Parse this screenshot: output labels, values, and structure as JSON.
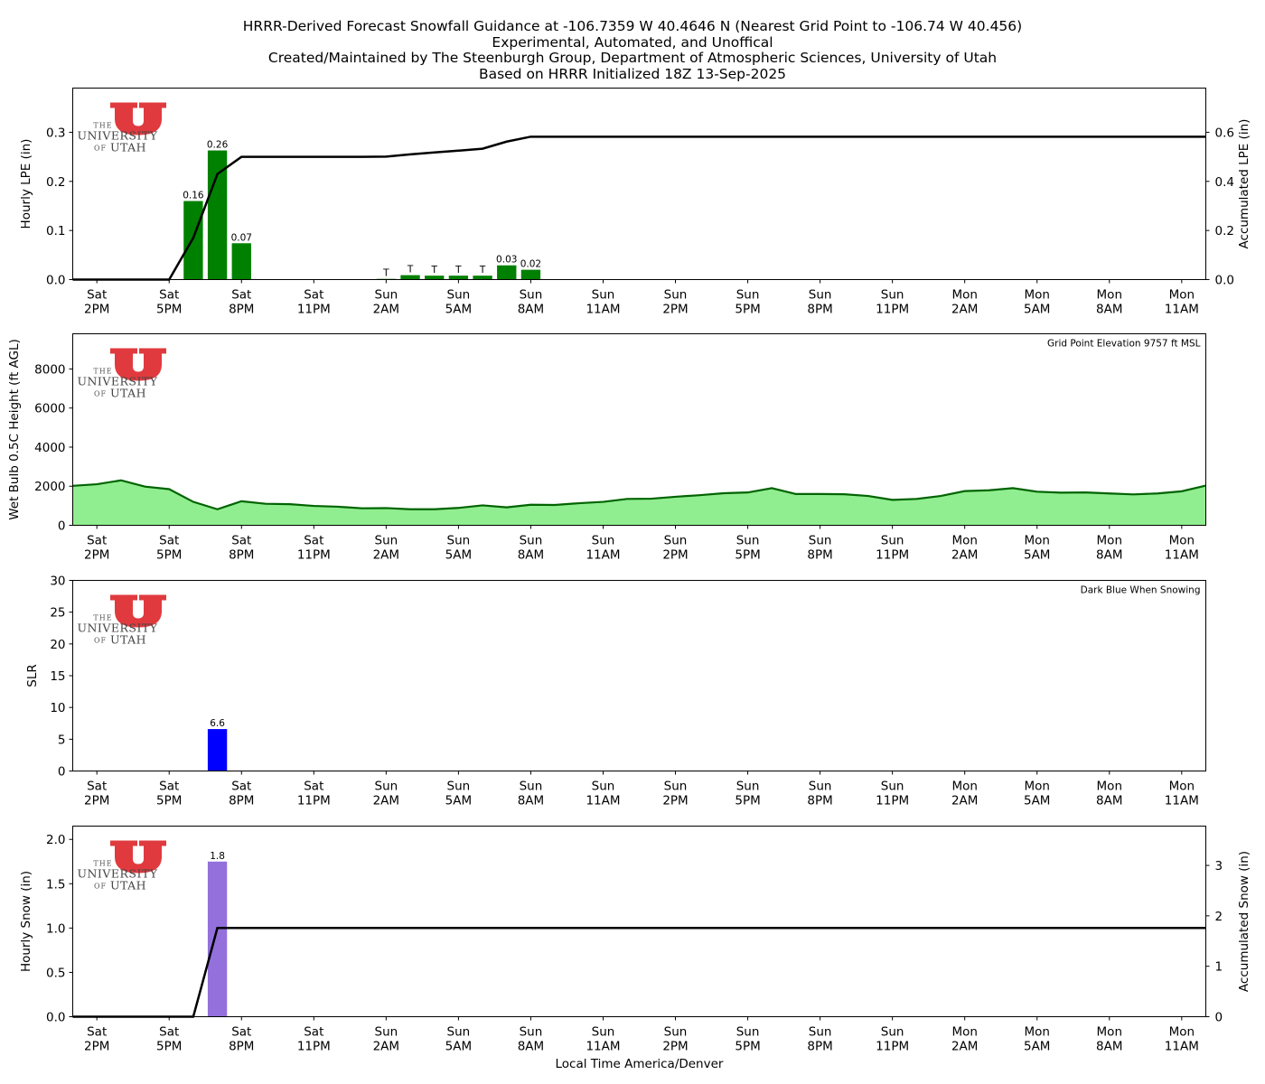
{
  "title_lines": [
    "HRRR-Derived Forecast Snowfall Guidance at -106.7359 W 40.4646 N (Nearest Grid Point to -106.74 W 40.456)",
    "Experimental, Automated, and Unoffical",
    "Created/Maintained by The Steenburgh Group, Department of Atmospheric Sciences, University of Utah",
    "Based on HRRR Initialized 18Z 13-Sep-2025"
  ],
  "logo": {
    "small": "THE",
    "big": "UNIVERSITY",
    "of": "OF",
    "utah": "UTAH",
    "color": "#e03a3e"
  },
  "time_axis": {
    "label": "Local Time America/Denver",
    "ticks": [
      {
        "x": 1,
        "day": "Sat",
        "time": "2PM"
      },
      {
        "x": 4,
        "day": "Sat",
        "time": "5PM"
      },
      {
        "x": 7,
        "day": "Sat",
        "time": "8PM"
      },
      {
        "x": 10,
        "day": "Sat",
        "time": "11PM"
      },
      {
        "x": 13,
        "day": "Sun",
        "time": "2AM"
      },
      {
        "x": 16,
        "day": "Sun",
        "time": "5AM"
      },
      {
        "x": 19,
        "day": "Sun",
        "time": "8AM"
      },
      {
        "x": 22,
        "day": "Sun",
        "time": "11AM"
      },
      {
        "x": 25,
        "day": "Sun",
        "time": "2PM"
      },
      {
        "x": 28,
        "day": "Sun",
        "time": "5PM"
      },
      {
        "x": 31,
        "day": "Sun",
        "time": "8PM"
      },
      {
        "x": 34,
        "day": "Sun",
        "time": "11PM"
      },
      {
        "x": 37,
        "day": "Mon",
        "time": "2AM"
      },
      {
        "x": 40,
        "day": "Mon",
        "time": "5AM"
      },
      {
        "x": 43,
        "day": "Mon",
        "time": "8AM"
      },
      {
        "x": 46,
        "day": "Mon",
        "time": "11AM"
      }
    ],
    "range": [
      0,
      47
    ]
  },
  "chart_data": [
    {
      "id": "lpe",
      "type": "bar",
      "ylabel": "Hourly LPE (in)",
      "ylim": [
        0,
        0.39
      ],
      "yticks": [
        0.0,
        0.1,
        0.2,
        0.3
      ],
      "ytick_labels": [
        "0.0",
        "0.1",
        "0.2",
        "0.3"
      ],
      "bar_color": "#008000",
      "bars": [
        {
          "x": 5,
          "value": 0.16,
          "label": "0.16"
        },
        {
          "x": 6,
          "value": 0.263,
          "label": "0.26"
        },
        {
          "x": 7,
          "value": 0.074,
          "label": "0.07"
        },
        {
          "x": 13,
          "value": 0.0015,
          "label": "T"
        },
        {
          "x": 14,
          "value": 0.009,
          "label": "T"
        },
        {
          "x": 15,
          "value": 0.008,
          "label": "T"
        },
        {
          "x": 16,
          "value": 0.008,
          "label": "T"
        },
        {
          "x": 17,
          "value": 0.008,
          "label": "T"
        },
        {
          "x": 18,
          "value": 0.029,
          "label": "0.03"
        },
        {
          "x": 19,
          "value": 0.02,
          "label": "0.02"
        }
      ],
      "secondary": {
        "ylabel": "Accumulated LPE (in)",
        "ylim": [
          0,
          0.78
        ],
        "yticks": [
          0.0,
          0.2,
          0.4,
          0.6
        ],
        "ytick_labels": [
          "0.0",
          "0.2",
          "0.4",
          "0.6"
        ],
        "line_color": "#000000",
        "line": [
          [
            0,
            0
          ],
          [
            1,
            0
          ],
          [
            2,
            0
          ],
          [
            3,
            0
          ],
          [
            4,
            0
          ],
          [
            5,
            0.17
          ],
          [
            6,
            0.43
          ],
          [
            7,
            0.5
          ],
          [
            8,
            0.5
          ],
          [
            9,
            0.5
          ],
          [
            10,
            0.5
          ],
          [
            11,
            0.5
          ],
          [
            12,
            0.5
          ],
          [
            13,
            0.501
          ],
          [
            14,
            0.51
          ],
          [
            15,
            0.518
          ],
          [
            16,
            0.525
          ],
          [
            17,
            0.533
          ],
          [
            18,
            0.562
          ],
          [
            19,
            0.582
          ],
          [
            20,
            0.582
          ],
          [
            47,
            0.582
          ]
        ]
      }
    },
    {
      "id": "wetbulb",
      "type": "area",
      "ylabel": "Wet Bulb 0.5C Height (ft AGL)",
      "ylim": [
        0,
        9800
      ],
      "yticks": [
        0,
        2000,
        4000,
        6000,
        8000
      ],
      "ytick_labels": [
        "0",
        "2000",
        "4000",
        "6000",
        "8000"
      ],
      "fill_color": "#90ee90",
      "line_color": "#006400",
      "note": "Grid Point Elevation 9757 ft MSL",
      "values": [
        2020,
        2100,
        2300,
        1980,
        1850,
        1200,
        820,
        1230,
        1100,
        1080,
        990,
        950,
        870,
        880,
        820,
        820,
        890,
        1020,
        920,
        1050,
        1040,
        1130,
        1200,
        1350,
        1360,
        1460,
        1540,
        1640,
        1680,
        1900,
        1600,
        1600,
        1590,
        1500,
        1300,
        1350,
        1500,
        1750,
        1790,
        1900,
        1720,
        1670,
        1680,
        1630,
        1580,
        1630,
        1740,
        2030
      ]
    },
    {
      "id": "slr",
      "type": "bar",
      "ylabel": "SLR",
      "ylim": [
        0,
        30
      ],
      "yticks": [
        0,
        5,
        10,
        15,
        20,
        25,
        30
      ],
      "ytick_labels": [
        "0",
        "5",
        "10",
        "15",
        "20",
        "25",
        "30"
      ],
      "bar_color": "#0000ff",
      "note": "Dark Blue When Snowing",
      "bars": [
        {
          "x": 6,
          "value": 6.6,
          "label": "6.6"
        }
      ]
    },
    {
      "id": "snow",
      "type": "bar",
      "ylabel": "Hourly Snow (in)",
      "ylim": [
        0,
        2.15
      ],
      "yticks": [
        0.0,
        0.5,
        1.0,
        1.5,
        2.0
      ],
      "ytick_labels": [
        "0.0",
        "0.5",
        "1.0",
        "1.5",
        "2.0"
      ],
      "bar_color": "#9370db",
      "bars": [
        {
          "x": 6,
          "value": 1.75,
          "label": "1.8"
        }
      ],
      "secondary": {
        "ylabel": "Accumulated Snow (in)",
        "ylim": [
          0,
          3.78
        ],
        "yticks": [
          0,
          1,
          2,
          3
        ],
        "ytick_labels": [
          "0",
          "1",
          "2",
          "3"
        ],
        "line_color": "#000000",
        "line": [
          [
            0,
            0
          ],
          [
            1,
            0
          ],
          [
            2,
            0
          ],
          [
            3,
            0
          ],
          [
            4,
            0
          ],
          [
            5,
            0
          ],
          [
            6,
            1.76
          ],
          [
            7,
            1.76
          ],
          [
            47,
            1.76
          ]
        ]
      }
    }
  ]
}
